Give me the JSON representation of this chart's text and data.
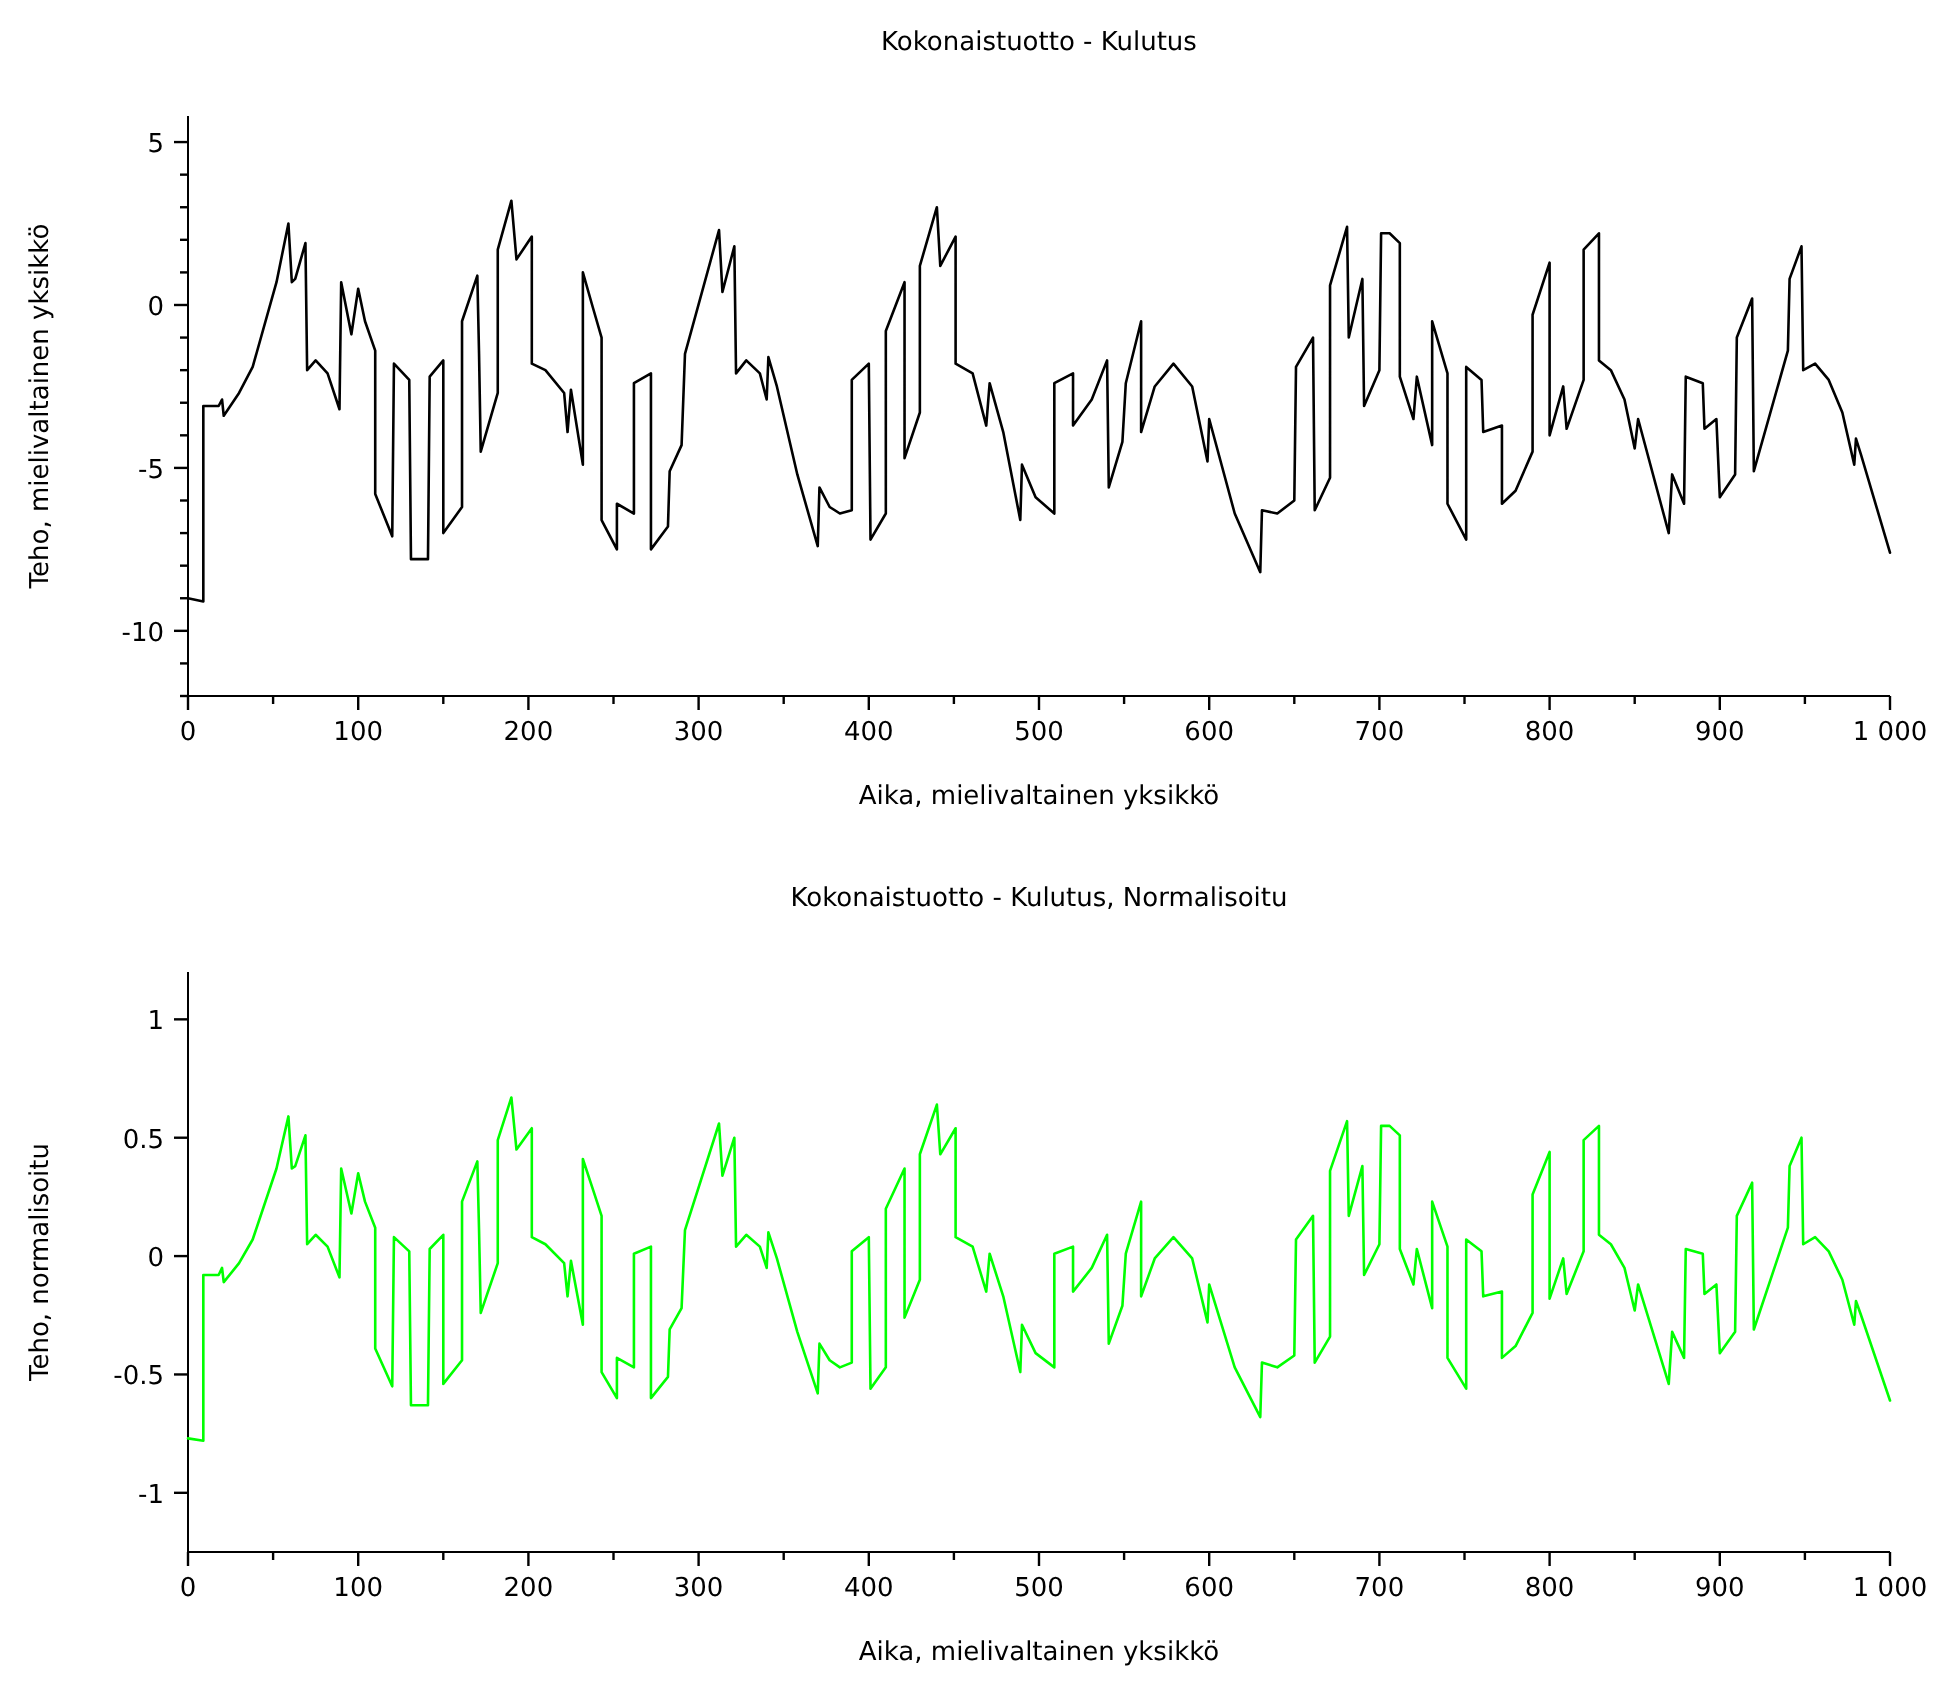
{
  "chart_data": [
    {
      "type": "line",
      "title": "Kokonaistuotto - Kulutus",
      "xlabel": "Aika, mielivaltainen yksikkö",
      "ylabel": "Teho, mielivaltainen yksikkö",
      "xlim": [
        0,
        1000
      ],
      "ylim": [
        -12,
        5.8
      ],
      "xticks": [
        0,
        {
          "value": 50,
          "label": null
        },
        100,
        {
          "value": 150,
          "label": null
        },
        200,
        {
          "value": 250,
          "label": null
        },
        300,
        {
          "value": 350,
          "label": null
        },
        400,
        {
          "value": 450,
          "label": null
        },
        500,
        {
          "value": 550,
          "label": null
        },
        600,
        {
          "value": 650,
          "label": null
        },
        700,
        {
          "value": 750,
          "label": null
        },
        800,
        {
          "value": 850,
          "label": null
        },
        900,
        {
          "value": 950,
          "label": null
        },
        {
          "value": 1000,
          "label": "1 000"
        }
      ],
      "yticks": [
        {
          "value": -12,
          "label": null
        },
        {
          "value": -11,
          "label": null
        },
        -10,
        {
          "value": -9,
          "label": null
        },
        {
          "value": -8,
          "label": null
        },
        {
          "value": -7,
          "label": null
        },
        {
          "value": -6,
          "label": null
        },
        -5,
        {
          "value": -4,
          "label": null
        },
        {
          "value": -3,
          "label": null
        },
        {
          "value": -2,
          "label": null
        },
        {
          "value": -1,
          "label": null
        },
        0,
        {
          "value": 1,
          "label": null
        },
        {
          "value": 2,
          "label": null
        },
        {
          "value": 3,
          "label": null
        },
        {
          "value": 4,
          "label": null
        },
        5
      ],
      "x": [
        0,
        9,
        9,
        18,
        20,
        21,
        30,
        38,
        52,
        59,
        61,
        63,
        69,
        70,
        75,
        82,
        89,
        90,
        96,
        100,
        104,
        110,
        110,
        120,
        121,
        130,
        131,
        141,
        142,
        150,
        150,
        161,
        161,
        170,
        171,
        172,
        182,
        182,
        190,
        193,
        202,
        202,
        210,
        221,
        223,
        225,
        232,
        232,
        238,
        243,
        243,
        252,
        252,
        262,
        262,
        272,
        272,
        282,
        283,
        290,
        292,
        312,
        314,
        321,
        322,
        328,
        336,
        340,
        341,
        346,
        358,
        370,
        371,
        377,
        383,
        390,
        390,
        400,
        401,
        410,
        410,
        421,
        421,
        430,
        430,
        440,
        442,
        451,
        451,
        461,
        469,
        471,
        479,
        489,
        490,
        498,
        509,
        509,
        520,
        520,
        531,
        540,
        541,
        549,
        551,
        560,
        560,
        568,
        579,
        590,
        599,
        600,
        615,
        630,
        631,
        640,
        650,
        651,
        661,
        662,
        671,
        671,
        681,
        682,
        690,
        691,
        700,
        701,
        706,
        712,
        712,
        720,
        722,
        731,
        731,
        740,
        740,
        751,
        751,
        760,
        761,
        772,
        772,
        780,
        790,
        790,
        800,
        800,
        808,
        810,
        820,
        820,
        829,
        829,
        836,
        844,
        850,
        852,
        870,
        872,
        879,
        880,
        890,
        891,
        898,
        900,
        909,
        910,
        919,
        920,
        940,
        941,
        948,
        949,
        956,
        964,
        972,
        979,
        980,
        983,
        1000
      ],
      "series": [
        {
          "color": "#000000",
          "values": [
            -9.0,
            -9.1,
            -3.1,
            -3.1,
            -2.9,
            -3.4,
            -2.7,
            -1.9,
            0.7,
            2.5,
            0.7,
            0.8,
            1.9,
            -2.0,
            -1.7,
            -2.1,
            -3.2,
            0.7,
            -0.9,
            0.5,
            -0.5,
            -1.4,
            -5.8,
            -7.1,
            -1.8,
            -2.3,
            -7.8,
            -7.8,
            -2.2,
            -1.7,
            -7.0,
            -6.2,
            -0.5,
            0.9,
            -1.5,
            -4.5,
            -2.7,
            1.7,
            3.2,
            1.4,
            2.1,
            -1.8,
            -2.0,
            -2.7,
            -3.9,
            -2.6,
            -4.9,
            1.0,
            -0.1,
            -1.0,
            -6.6,
            -7.5,
            -6.1,
            -6.4,
            -2.4,
            -2.1,
            -7.5,
            -6.8,
            -5.1,
            -4.3,
            -1.5,
            2.3,
            0.4,
            1.8,
            -2.1,
            -1.7,
            -2.1,
            -2.9,
            -1.6,
            -2.5,
            -5.2,
            -7.4,
            -5.6,
            -6.2,
            -6.4,
            -6.3,
            -2.3,
            -1.8,
            -7.2,
            -6.4,
            -0.8,
            0.7,
            -4.7,
            -3.3,
            1.2,
            3.0,
            1.2,
            2.1,
            -1.8,
            -2.1,
            -3.7,
            -2.4,
            -3.9,
            -6.6,
            -4.9,
            -5.9,
            -6.4,
            -2.4,
            -2.1,
            -3.7,
            -2.9,
            -1.7,
            -5.6,
            -4.2,
            -2.4,
            -0.5,
            -3.9,
            -2.5,
            -1.8,
            -2.5,
            -4.8,
            -3.5,
            -6.4,
            -8.2,
            -6.3,
            -6.4,
            -6.0,
            -1.9,
            -1.0,
            -6.3,
            -5.3,
            0.6,
            2.4,
            -1.0,
            0.8,
            -3.1,
            -2.0,
            2.2,
            2.2,
            1.9,
            -2.2,
            -3.5,
            -2.2,
            -4.3,
            -0.5,
            -2.1,
            -6.1,
            -7.2,
            -1.9,
            -2.3,
            -3.9,
            -3.7,
            -6.1,
            -5.7,
            -4.5,
            -0.3,
            1.3,
            -4.0,
            -2.5,
            -3.8,
            -2.3,
            1.7,
            2.2,
            -1.7,
            -2.0,
            -2.9,
            -4.4,
            -3.5,
            -7.0,
            -5.2,
            -6.1,
            -2.2,
            -2.4,
            -3.8,
            -3.5,
            -5.9,
            -5.2,
            -1.0,
            0.2,
            -5.1,
            -1.4,
            0.8,
            1.8,
            -2.0,
            -1.8,
            -2.3,
            -3.3,
            -4.9,
            -4.1,
            -4.6,
            -7.6
          ]
        }
      ]
    },
    {
      "type": "line",
      "title": "Kokonaistuotto - Kulutus, Normalisoitu",
      "xlabel": "Aika, mielivaltainen yksikkö",
      "ylabel": "Teho, normalisoitu",
      "xlim": [
        0,
        1000
      ],
      "ylim": [
        -1.25,
        1.2
      ],
      "xticks": [
        0,
        {
          "value": 50,
          "label": null
        },
        100,
        {
          "value": 150,
          "label": null
        },
        200,
        {
          "value": 250,
          "label": null
        },
        300,
        {
          "value": 350,
          "label": null
        },
        400,
        {
          "value": 450,
          "label": null
        },
        500,
        {
          "value": 550,
          "label": null
        },
        600,
        {
          "value": 650,
          "label": null
        },
        700,
        {
          "value": 750,
          "label": null
        },
        800,
        {
          "value": 850,
          "label": null
        },
        900,
        {
          "value": 950,
          "label": null
        },
        {
          "value": 1000,
          "label": "1 000"
        }
      ],
      "yticks": [
        -1,
        -0.5,
        0,
        0.5,
        1
      ],
      "x": [
        0,
        9,
        9,
        18,
        20,
        21,
        30,
        38,
        52,
        59,
        61,
        63,
        69,
        70,
        75,
        82,
        89,
        90,
        96,
        100,
        104,
        110,
        110,
        120,
        121,
        130,
        131,
        141,
        142,
        150,
        150,
        161,
        161,
        170,
        171,
        172,
        182,
        182,
        190,
        193,
        202,
        202,
        210,
        221,
        223,
        225,
        232,
        232,
        238,
        243,
        243,
        252,
        252,
        262,
        262,
        272,
        272,
        282,
        283,
        290,
        292,
        312,
        314,
        321,
        322,
        328,
        336,
        340,
        341,
        346,
        358,
        370,
        371,
        377,
        383,
        390,
        390,
        400,
        401,
        410,
        410,
        421,
        421,
        430,
        430,
        440,
        442,
        451,
        451,
        461,
        469,
        471,
        479,
        489,
        490,
        498,
        509,
        509,
        520,
        520,
        531,
        540,
        541,
        549,
        551,
        560,
        560,
        568,
        579,
        590,
        599,
        600,
        615,
        630,
        631,
        640,
        650,
        651,
        661,
        662,
        671,
        671,
        681,
        682,
        690,
        691,
        700,
        701,
        706,
        712,
        712,
        720,
        722,
        731,
        731,
        740,
        740,
        751,
        751,
        760,
        761,
        772,
        772,
        780,
        790,
        790,
        800,
        800,
        808,
        810,
        820,
        820,
        829,
        829,
        836,
        844,
        850,
        852,
        870,
        872,
        879,
        880,
        890,
        891,
        898,
        900,
        909,
        910,
        919,
        920,
        940,
        941,
        948,
        949,
        956,
        964,
        972,
        979,
        980,
        983,
        1000
      ],
      "series": [
        {
          "color": "#00ff00",
          "values": [
            -0.77,
            -0.78,
            -0.08,
            -0.08,
            -0.05,
            -0.11,
            -0.03,
            0.07,
            0.37,
            0.59,
            0.37,
            0.38,
            0.51,
            0.05,
            0.09,
            0.04,
            -0.09,
            0.37,
            0.18,
            0.35,
            0.23,
            0.12,
            -0.39,
            -0.55,
            0.08,
            0.02,
            -0.63,
            -0.63,
            0.03,
            0.09,
            -0.54,
            -0.44,
            0.23,
            0.4,
            0.11,
            -0.24,
            -0.03,
            0.49,
            0.67,
            0.45,
            0.54,
            0.08,
            0.05,
            -0.03,
            -0.17,
            -0.02,
            -0.29,
            0.41,
            0.28,
            0.17,
            -0.49,
            -0.6,
            -0.43,
            -0.47,
            0.01,
            0.04,
            -0.6,
            -0.51,
            -0.31,
            -0.22,
            0.11,
            0.56,
            0.34,
            0.5,
            0.04,
            0.09,
            0.04,
            -0.05,
            0.1,
            -0.01,
            -0.32,
            -0.58,
            -0.37,
            -0.44,
            -0.47,
            -0.45,
            0.02,
            0.08,
            -0.56,
            -0.47,
            0.2,
            0.37,
            -0.26,
            -0.1,
            0.43,
            0.64,
            0.43,
            0.54,
            0.08,
            0.04,
            -0.15,
            0.01,
            -0.17,
            -0.49,
            -0.29,
            -0.41,
            -0.47,
            0.01,
            0.04,
            -0.15,
            -0.05,
            0.09,
            -0.37,
            -0.21,
            0.01,
            0.23,
            -0.17,
            -0.01,
            0.08,
            -0.01,
            -0.28,
            -0.12,
            -0.47,
            -0.68,
            -0.45,
            -0.47,
            -0.42,
            0.07,
            0.17,
            -0.45,
            -0.34,
            0.36,
            0.57,
            0.17,
            0.38,
            -0.08,
            0.05,
            0.55,
            0.55,
            0.51,
            0.03,
            -0.12,
            0.03,
            -0.22,
            0.23,
            0.04,
            -0.43,
            -0.56,
            0.07,
            0.02,
            -0.17,
            -0.15,
            -0.43,
            -0.38,
            -0.24,
            0.26,
            0.44,
            -0.18,
            -0.01,
            -0.16,
            0.02,
            0.49,
            0.55,
            0.09,
            0.05,
            -0.05,
            -0.23,
            -0.12,
            -0.54,
            -0.32,
            -0.43,
            0.03,
            0.01,
            -0.16,
            -0.12,
            -0.41,
            -0.32,
            0.17,
            0.31,
            -0.31,
            0.12,
            0.38,
            0.5,
            0.05,
            0.08,
            0.02,
            -0.1,
            -0.29,
            -0.19,
            -0.25,
            -0.61
          ]
        }
      ]
    }
  ]
}
